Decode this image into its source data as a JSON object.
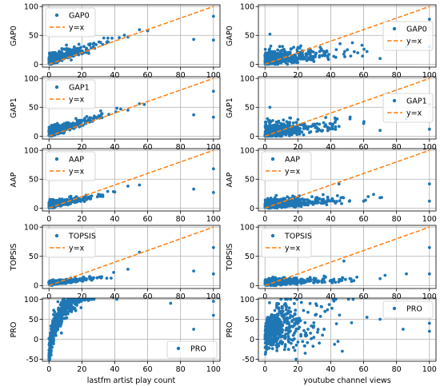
{
  "colors": {
    "points": "#1f77b4",
    "identity": "#ff7f0e",
    "grid": "#b0b0b0",
    "frame": "#000000"
  },
  "chart_data": [
    {
      "type": "scatter",
      "panel": "r0c0",
      "ylabel": "GAP0",
      "xlabel": "",
      "xlim": [
        -4,
        104
      ],
      "ylim": [
        -5,
        103
      ],
      "xticks": [
        0,
        20,
        40,
        60,
        80,
        100
      ],
      "yticks": [
        0,
        50,
        100
      ],
      "grid": true,
      "legend": "top-left",
      "series": [
        {
          "name": "GAP0",
          "kind": "points",
          "distribution": {
            "n": 420,
            "x_scale": 8,
            "x_max": 60,
            "slope": 0.95,
            "noise": 10,
            "y_min": 0,
            "y_max": 100,
            "seed": 11
          },
          "x": [
            88,
            100,
            100,
            55,
            48,
            60
          ],
          "y": [
            43,
            83,
            42,
            60,
            47,
            58
          ]
        },
        {
          "name": "y=x",
          "kind": "line",
          "x": [
            0,
            100
          ],
          "y": [
            0,
            100
          ]
        }
      ]
    },
    {
      "type": "scatter",
      "panel": "r0c1",
      "ylabel": "GAP0",
      "xlabel": "",
      "xlim": [
        -4,
        104
      ],
      "ylim": [
        -5,
        103
      ],
      "xticks": [
        0,
        20,
        40,
        60,
        80,
        100
      ],
      "yticks": [
        0,
        50,
        100
      ],
      "grid": true,
      "legend": "center-right",
      "series": [
        {
          "name": "GAP0",
          "kind": "points",
          "distribution": {
            "n": 460,
            "x_scale": 12,
            "x_max": 80,
            "slope": 0.25,
            "noise": 14,
            "y_min": 0,
            "y_max": 100,
            "seed": 23
          },
          "x": [
            100,
            100,
            86,
            70,
            62,
            3
          ],
          "y": [
            78,
            30,
            30,
            10,
            22,
            52
          ]
        },
        {
          "name": "y=x",
          "kind": "line",
          "x": [
            0,
            100
          ],
          "y": [
            0,
            100
          ]
        }
      ]
    },
    {
      "type": "scatter",
      "panel": "r1c0",
      "ylabel": "GAP1",
      "xlabel": "",
      "xlim": [
        -4,
        104
      ],
      "ylim": [
        -5,
        103
      ],
      "xticks": [
        0,
        20,
        40,
        60,
        80,
        100
      ],
      "yticks": [
        0,
        50,
        100
      ],
      "grid": true,
      "legend": "top-left",
      "series": [
        {
          "name": "GAP1",
          "kind": "points",
          "distribution": {
            "n": 420,
            "x_scale": 8,
            "x_max": 60,
            "slope": 0.9,
            "noise": 9,
            "y_min": 0,
            "y_max": 100,
            "seed": 31
          },
          "x": [
            88,
            100,
            100,
            55,
            48,
            58
          ],
          "y": [
            37,
            78,
            33,
            56,
            45,
            55
          ]
        },
        {
          "name": "y=x",
          "kind": "line",
          "x": [
            0,
            100
          ],
          "y": [
            0,
            100
          ]
        }
      ]
    },
    {
      "type": "scatter",
      "panel": "r1c1",
      "ylabel": "GAP1",
      "xlabel": "",
      "xlim": [
        -4,
        104
      ],
      "ylim": [
        -5,
        103
      ],
      "xticks": [
        0,
        20,
        40,
        60,
        80,
        100
      ],
      "yticks": [
        0,
        50,
        100
      ],
      "grid": true,
      "legend": "center-right",
      "series": [
        {
          "name": "GAP1",
          "kind": "points",
          "distribution": {
            "n": 460,
            "x_scale": 12,
            "x_max": 80,
            "slope": 0.25,
            "noise": 14,
            "y_min": 0,
            "y_max": 100,
            "seed": 47
          },
          "x": [
            100,
            100,
            86,
            70,
            60,
            3
          ],
          "y": [
            55,
            12,
            30,
            10,
            22,
            50
          ]
        },
        {
          "name": "y=x",
          "kind": "line",
          "x": [
            0,
            100
          ],
          "y": [
            0,
            100
          ]
        }
      ]
    },
    {
      "type": "scatter",
      "panel": "r2c0",
      "ylabel": "AAP",
      "xlabel": "",
      "xlim": [
        -4,
        104
      ],
      "ylim": [
        -5,
        103
      ],
      "xticks": [
        0,
        20,
        40,
        60,
        80,
        100
      ],
      "yticks": [
        0,
        50,
        100
      ],
      "grid": true,
      "legend": "top-left",
      "series": [
        {
          "name": "AAP",
          "kind": "points",
          "distribution": {
            "n": 400,
            "x_scale": 8,
            "x_max": 60,
            "slope": 0.55,
            "noise": 6,
            "y_min": 0,
            "y_max": 100,
            "seed": 53
          },
          "x": [
            88,
            100,
            100,
            55,
            48,
            40
          ],
          "y": [
            33,
            68,
            27,
            40,
            38,
            28
          ]
        },
        {
          "name": "y=x",
          "kind": "line",
          "x": [
            0,
            100
          ],
          "y": [
            0,
            100
          ]
        }
      ]
    },
    {
      "type": "scatter",
      "panel": "r2c1",
      "ylabel": "AAP",
      "xlabel": "",
      "xlim": [
        -4,
        104
      ],
      "ylim": [
        -5,
        103
      ],
      "xticks": [
        0,
        20,
        40,
        60,
        80,
        100
      ],
      "yticks": [
        0,
        50,
        100
      ],
      "grid": true,
      "legend": "top-left",
      "series": [
        {
          "name": "AAP",
          "kind": "points",
          "distribution": {
            "n": 460,
            "x_scale": 12,
            "x_max": 80,
            "slope": 0.15,
            "noise": 9,
            "y_min": 0,
            "y_max": 100,
            "seed": 61
          },
          "x": [
            100,
            100,
            70,
            60,
            45
          ],
          "y": [
            42,
            12,
            18,
            12,
            42
          ]
        },
        {
          "name": "y=x",
          "kind": "line",
          "x": [
            0,
            100
          ],
          "y": [
            0,
            100
          ]
        }
      ]
    },
    {
      "type": "scatter",
      "panel": "r3c0",
      "ylabel": "TOPSIS",
      "xlabel": "",
      "xlim": [
        -4,
        104
      ],
      "ylim": [
        -5,
        103
      ],
      "xticks": [
        0,
        20,
        40,
        60,
        80,
        100
      ],
      "yticks": [
        0,
        50,
        100
      ],
      "grid": true,
      "legend": "top-left",
      "series": [
        {
          "name": "TOPSIS",
          "kind": "points",
          "distribution": {
            "n": 400,
            "x_scale": 8,
            "x_max": 60,
            "slope": 0.3,
            "noise": 4,
            "y_min": 0,
            "y_max": 100,
            "seed": 71
          },
          "x": [
            88,
            100,
            100,
            55,
            48
          ],
          "y": [
            25,
            65,
            20,
            57,
            28
          ]
        },
        {
          "name": "y=x",
          "kind": "line",
          "x": [
            0,
            100
          ],
          "y": [
            0,
            100
          ]
        }
      ]
    },
    {
      "type": "scatter",
      "panel": "r3c1",
      "ylabel": "TOPSIS",
      "xlabel": "",
      "xlim": [
        -4,
        104
      ],
      "ylim": [
        -5,
        103
      ],
      "xticks": [
        0,
        20,
        40,
        60,
        80,
        100
      ],
      "yticks": [
        0,
        50,
        100
      ],
      "grid": true,
      "legend": "top-left",
      "series": [
        {
          "name": "TOPSIS",
          "kind": "points",
          "distribution": {
            "n": 460,
            "x_scale": 12,
            "x_max": 80,
            "slope": 0.12,
            "noise": 6,
            "y_min": 0,
            "y_max": 100,
            "seed": 83
          },
          "x": [
            100,
            100,
            86,
            70,
            48
          ],
          "y": [
            65,
            20,
            20,
            12,
            42
          ]
        },
        {
          "name": "y=x",
          "kind": "line",
          "x": [
            0,
            100
          ],
          "y": [
            0,
            100
          ]
        }
      ]
    },
    {
      "type": "scatter",
      "panel": "r4c0",
      "ylabel": "PRO",
      "xlabel": "lastfm artist play count",
      "xlim": [
        -4,
        104
      ],
      "ylim": [
        -55,
        103
      ],
      "xticks": [
        0,
        20,
        40,
        60,
        80,
        100
      ],
      "yticks": [
        -50,
        0,
        50,
        100
      ],
      "grid": true,
      "legend": "bottom-right",
      "series": [
        {
          "name": "PRO",
          "kind": "points",
          "distribution": {
            "n": 520,
            "x_scale": 7,
            "x_max": 60,
            "curve": "log",
            "noise": 14,
            "y_min": -50,
            "y_max": 100,
            "seed": 97
          },
          "x": [
            88,
            100,
            100,
            74
          ],
          "y": [
            25,
            95,
            60,
            90
          ]
        }
      ]
    },
    {
      "type": "scatter",
      "panel": "r4c1",
      "ylabel": "PRO",
      "xlabel": "youtube channel views",
      "xlim": [
        -4,
        104
      ],
      "ylim": [
        -55,
        103
      ],
      "xticks": [
        0,
        20,
        40,
        60,
        80,
        100
      ],
      "yticks": [
        -50,
        0,
        50,
        100
      ],
      "grid": true,
      "legend": "top-right",
      "series": [
        {
          "name": "PRO",
          "kind": "points",
          "distribution": {
            "n": 520,
            "x_scale": 10,
            "x_max": 75,
            "curve": "flat",
            "noise": 30,
            "y_min": -50,
            "y_max": 100,
            "seed": 101
          },
          "x": [
            100,
            100,
            84,
            70,
            62
          ],
          "y": [
            40,
            20,
            25,
            50,
            55
          ]
        }
      ]
    }
  ]
}
